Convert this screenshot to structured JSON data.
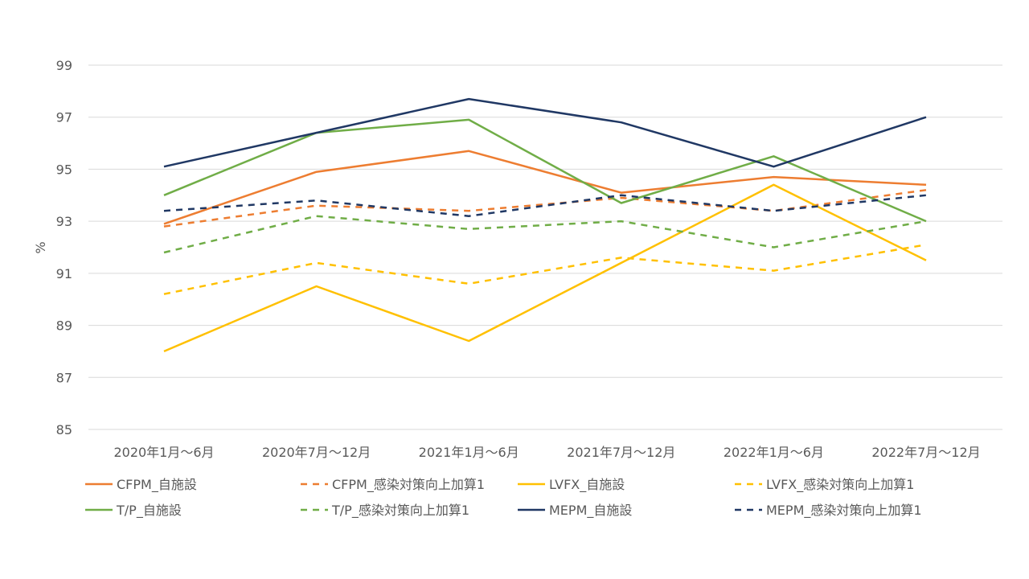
{
  "chart_data": {
    "type": "line",
    "ylabel": "%",
    "ylim": [
      85,
      99
    ],
    "yticks": [
      85,
      87,
      89,
      91,
      93,
      95,
      97,
      99
    ],
    "grid": true,
    "legend_position": "bottom",
    "categories": [
      "2020年1月～6月",
      "2020年7月～12月",
      "2021年1月～6月",
      "2021年7月～12月",
      "2022年1月～6月",
      "2022年7月～12月"
    ],
    "series": [
      {
        "name": "CFPM_自施設",
        "color": "#ED7D31",
        "dashed": false,
        "values": [
          92.9,
          94.9,
          95.7,
          94.1,
          94.7,
          94.4
        ]
      },
      {
        "name": "CFPM_感染対策向上加算1",
        "color": "#ED7D31",
        "dashed": true,
        "values": [
          92.8,
          93.6,
          93.4,
          93.9,
          93.4,
          94.2
        ]
      },
      {
        "name": "LVFX_自施設",
        "color": "#FFC000",
        "dashed": false,
        "values": [
          88.0,
          90.5,
          88.4,
          91.4,
          94.4,
          91.5
        ]
      },
      {
        "name": "LVFX_感染対策向上加算1",
        "color": "#FFC000",
        "dashed": true,
        "values": [
          90.2,
          91.4,
          90.6,
          91.6,
          91.1,
          92.1
        ]
      },
      {
        "name": "T/P_自施設",
        "color": "#70AD47",
        "dashed": false,
        "values": [
          94.0,
          96.4,
          96.9,
          93.7,
          95.5,
          93.0
        ]
      },
      {
        "name": "T/P_感染対策向上加算1",
        "color": "#70AD47",
        "dashed": true,
        "values": [
          91.8,
          93.2,
          92.7,
          93.0,
          92.0,
          93.0
        ]
      },
      {
        "name": "MEPM_自施設",
        "color": "#203864",
        "dashed": false,
        "values": [
          95.1,
          96.4,
          97.7,
          96.8,
          95.1,
          97.0
        ]
      },
      {
        "name": "MEPM_感染対策向上加算1",
        "color": "#203864",
        "dashed": true,
        "values": [
          93.4,
          93.8,
          93.2,
          94.0,
          93.4,
          94.0
        ]
      }
    ]
  }
}
